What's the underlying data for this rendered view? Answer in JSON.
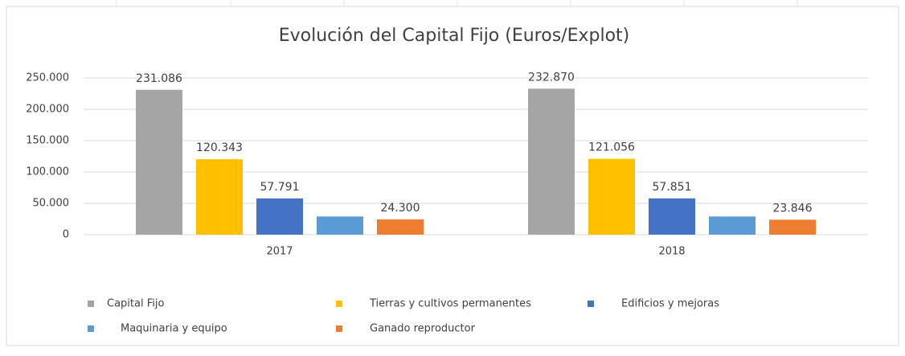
{
  "chart_data": {
    "type": "bar",
    "title": "Evolución del Capital Fijo  (Euros/Explot)",
    "categories": [
      "2017",
      "2018"
    ],
    "series": [
      {
        "name": "Capital Fijo",
        "color": "#a5a5a5",
        "values": [
          231086,
          232870
        ],
        "value_labels": [
          "231.086",
          "232.870"
        ]
      },
      {
        "name": "Tierras y cultivos permanentes",
        "color": "#ffc000",
        "values": [
          120343,
          121056
        ],
        "value_labels": [
          "120.343",
          "121.056"
        ]
      },
      {
        "name": "Edificios y mejoras",
        "color": "#4472c4",
        "values": [
          57791,
          57851
        ],
        "value_labels": [
          "57.791",
          "57.851"
        ]
      },
      {
        "name": "Maquinaria y equipo",
        "color": "#5b9bd5",
        "values": [
          29000,
          29000
        ],
        "value_labels": [
          null,
          null
        ]
      },
      {
        "name": "Ganado reproductor",
        "color": "#ed7d31",
        "values": [
          24300,
          23846
        ],
        "value_labels": [
          "24.300",
          "23.846"
        ]
      }
    ],
    "ylim": [
      0,
      250000
    ],
    "yticks": [
      0,
      {
        "value": 50000,
        "label": "50.000"
      },
      {
        "value": 100000,
        "label": "100.000"
      },
      {
        "value": 150000,
        "label": "150.000"
      },
      {
        "value": 200000,
        "label": "200.000"
      },
      {
        "value": 250000,
        "label": "250.000"
      }
    ],
    "grid": true,
    "legend": "bottom"
  }
}
